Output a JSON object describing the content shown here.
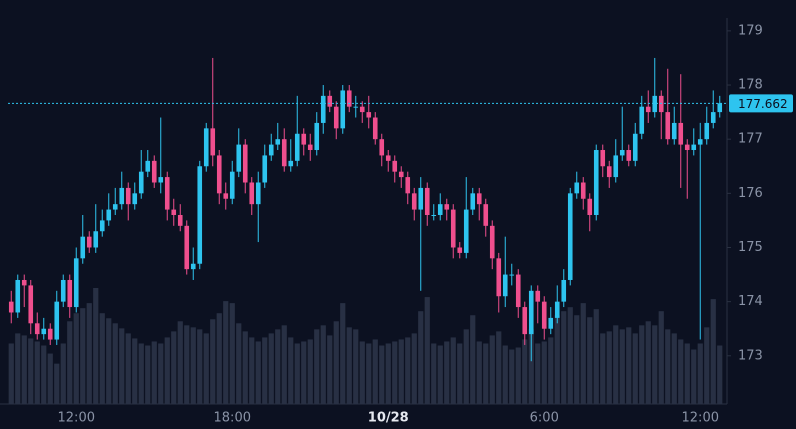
{
  "chart_data": {
    "type": "candlestick",
    "categories": [
      null,
      null,
      null,
      null,
      null,
      null,
      null,
      null,
      null,
      null,
      "12:00",
      null,
      null,
      null,
      null,
      null,
      null,
      null,
      null,
      null,
      null,
      null,
      null,
      null,
      null,
      null,
      null,
      null,
      null,
      null,
      null,
      null,
      null,
      null,
      "18:00",
      null,
      null,
      null,
      null,
      null,
      null,
      null,
      null,
      null,
      null,
      null,
      null,
      null,
      null,
      null,
      null,
      null,
      null,
      null,
      null,
      null,
      null,
      null,
      "10/28",
      null,
      null,
      null,
      null,
      null,
      null,
      null,
      null,
      null,
      null,
      null,
      null,
      null,
      null,
      null,
      null,
      null,
      null,
      null,
      null,
      null,
      null,
      null,
      "6:00",
      null,
      null,
      null,
      null,
      null,
      null,
      null,
      null,
      null,
      null,
      null,
      null,
      null,
      null,
      null,
      null,
      null,
      null,
      null,
      null,
      null,
      null,
      null,
      "12:00",
      null,
      null,
      null
    ],
    "open": [
      174.0,
      173.8,
      174.4,
      174.3,
      173.6,
      173.4,
      173.5,
      173.3,
      174.0,
      174.4,
      173.9,
      174.8,
      175.2,
      175.0,
      175.3,
      175.5,
      175.7,
      175.8,
      176.1,
      175.8,
      176.0,
      176.4,
      176.6,
      176.2,
      176.3,
      175.7,
      175.6,
      175.4,
      174.6,
      174.7,
      176.5,
      177.2,
      176.7,
      176.0,
      175.9,
      176.4,
      176.9,
      176.2,
      175.8,
      176.2,
      176.7,
      176.9,
      177.0,
      176.5,
      176.6,
      177.1,
      176.9,
      176.8,
      177.3,
      177.8,
      177.6,
      177.2,
      177.9,
      177.6,
      177.6,
      177.5,
      177.4,
      177.0,
      176.7,
      176.6,
      176.4,
      176.3,
      176.0,
      175.7,
      176.1,
      175.6,
      175.6,
      175.8,
      175.7,
      175.0,
      174.9,
      175.7,
      176.0,
      175.8,
      175.4,
      174.8,
      174.1,
      174.5,
      174.5,
      173.9,
      173.4,
      174.2,
      174.0,
      173.5,
      173.7,
      174.0,
      174.4,
      176.0,
      176.2,
      175.9,
      175.6,
      176.8,
      176.5,
      176.3,
      176.7,
      176.8,
      176.6,
      177.1,
      177.6,
      177.5,
      177.8,
      177.5,
      177.0,
      177.3,
      176.9,
      176.8,
      176.9,
      177.0,
      177.3,
      177.5
    ],
    "high": [
      174.2,
      174.5,
      174.5,
      174.4,
      173.8,
      173.7,
      173.6,
      174.2,
      174.5,
      174.5,
      175.0,
      175.6,
      175.3,
      175.8,
      175.7,
      176.0,
      176.1,
      176.4,
      176.2,
      176.2,
      176.8,
      176.8,
      176.7,
      177.4,
      176.4,
      175.9,
      175.8,
      175.5,
      175.0,
      176.6,
      177.3,
      178.5,
      176.8,
      176.2,
      176.6,
      177.2,
      177.0,
      176.3,
      176.4,
      176.9,
      177.1,
      177.3,
      177.2,
      177.0,
      177.8,
      177.2,
      177.1,
      177.5,
      178.0,
      177.9,
      177.7,
      178.0,
      178.0,
      177.8,
      177.7,
      177.8,
      177.5,
      177.1,
      176.8,
      176.7,
      176.5,
      176.4,
      176.1,
      176.3,
      176.2,
      175.8,
      176.0,
      175.9,
      175.8,
      175.1,
      176.3,
      176.1,
      176.1,
      175.9,
      175.5,
      174.9,
      175.2,
      174.7,
      174.6,
      174.0,
      174.3,
      174.3,
      174.1,
      173.9,
      174.3,
      174.6,
      176.1,
      176.4,
      176.3,
      176.0,
      176.9,
      176.9,
      176.6,
      177.0,
      177.6,
      176.9,
      177.3,
      177.8,
      177.9,
      178.5,
      177.9,
      178.3,
      177.6,
      178.2,
      177.0,
      177.2,
      177.3,
      177.6,
      177.9,
      177.8
    ],
    "low": [
      173.6,
      173.7,
      173.9,
      173.4,
      173.3,
      173.3,
      173.2,
      173.2,
      173.9,
      173.7,
      173.8,
      174.7,
      174.9,
      174.9,
      175.2,
      175.4,
      175.6,
      175.7,
      175.5,
      175.7,
      175.9,
      176.3,
      176.1,
      176.0,
      175.5,
      175.4,
      175.3,
      174.5,
      174.4,
      174.6,
      176.4,
      176.5,
      175.8,
      175.7,
      175.8,
      176.3,
      176.0,
      175.6,
      175.1,
      176.1,
      176.6,
      176.8,
      176.4,
      176.4,
      176.5,
      176.7,
      176.6,
      176.7,
      177.1,
      177.5,
      177.0,
      177.1,
      177.5,
      177.4,
      177.3,
      177.2,
      176.9,
      176.5,
      176.4,
      176.2,
      176.1,
      175.8,
      175.5,
      174.2,
      175.4,
      175.5,
      175.5,
      175.5,
      174.8,
      174.8,
      174.8,
      175.6,
      175.5,
      175.2,
      174.6,
      173.8,
      173.9,
      174.3,
      173.7,
      173.2,
      172.9,
      173.6,
      173.3,
      173.4,
      173.6,
      173.9,
      174.3,
      175.9,
      175.7,
      175.3,
      175.5,
      176.3,
      176.1,
      176.2,
      176.6,
      176.5,
      176.5,
      177.0,
      177.3,
      177.4,
      177.0,
      176.9,
      176.9,
      176.1,
      175.9,
      176.7,
      173.3,
      176.9,
      177.2,
      177.4
    ],
    "close": [
      173.8,
      174.4,
      174.3,
      173.6,
      173.4,
      173.5,
      173.3,
      174.0,
      174.4,
      173.9,
      174.8,
      175.2,
      175.0,
      175.3,
      175.5,
      175.7,
      175.8,
      176.1,
      175.8,
      176.0,
      176.4,
      176.6,
      176.2,
      176.3,
      175.7,
      175.6,
      175.4,
      174.6,
      174.7,
      176.5,
      177.2,
      176.7,
      176.0,
      175.9,
      176.4,
      176.9,
      176.2,
      175.8,
      176.2,
      176.7,
      176.9,
      177.0,
      176.5,
      176.6,
      177.1,
      176.9,
      176.8,
      177.3,
      177.8,
      177.6,
      177.2,
      177.9,
      177.6,
      177.6,
      177.5,
      177.4,
      177.0,
      176.7,
      176.6,
      176.4,
      176.3,
      176.0,
      175.7,
      176.1,
      175.6,
      175.6,
      175.8,
      175.7,
      175.0,
      174.9,
      175.7,
      176.0,
      175.8,
      175.4,
      174.8,
      174.1,
      174.5,
      174.5,
      173.9,
      173.4,
      174.2,
      174.0,
      173.5,
      173.7,
      174.0,
      174.4,
      176.0,
      176.2,
      175.9,
      175.6,
      176.8,
      176.5,
      176.3,
      176.7,
      176.8,
      176.6,
      177.1,
      177.6,
      177.5,
      177.8,
      177.5,
      177.0,
      177.3,
      176.9,
      176.8,
      176.9,
      177.0,
      177.3,
      177.5,
      177.662
    ],
    "volume": [
      60,
      70,
      68,
      65,
      62,
      58,
      50,
      40,
      60,
      82,
      90,
      95,
      100,
      115,
      90,
      85,
      80,
      75,
      70,
      65,
      60,
      58,
      62,
      60,
      66,
      72,
      82,
      78,
      76,
      74,
      70,
      84,
      90,
      102,
      100,
      80,
      72,
      66,
      62,
      66,
      70,
      74,
      78,
      66,
      60,
      62,
      64,
      74,
      78,
      68,
      82,
      100,
      76,
      74,
      62,
      60,
      64,
      58,
      60,
      62,
      64,
      66,
      70,
      92,
      106,
      60,
      58,
      62,
      66,
      60,
      74,
      88,
      62,
      60,
      68,
      72,
      58,
      54,
      56,
      64,
      74,
      60,
      62,
      66,
      88,
      92,
      96,
      88,
      100,
      86,
      94,
      70,
      72,
      78,
      74,
      76,
      70,
      78,
      82,
      78,
      92,
      74,
      70,
      64,
      60,
      54,
      60,
      76,
      104,
      58
    ],
    "up_color": "#2ec4ef",
    "down_color": "#ef4f8e",
    "volume_color": "#283044",
    "ylim": [
      172.11,
      179.57
    ],
    "yticks": [
      173,
      174,
      175,
      176,
      177,
      178,
      179
    ],
    "last_price": 177.662
  }
}
